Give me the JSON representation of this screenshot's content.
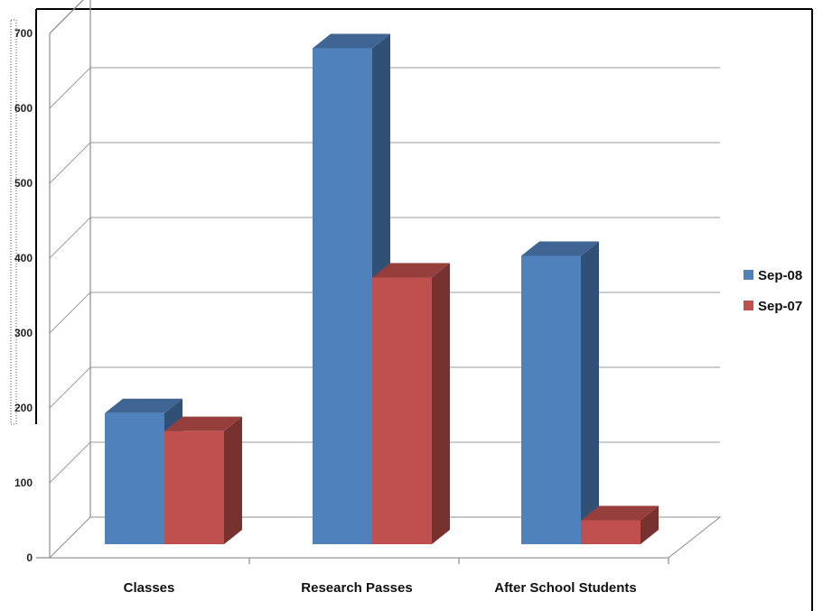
{
  "chart_data": {
    "type": "bar",
    "style": "3d-clustered-column",
    "categories": [
      "Classes",
      "Research Passes",
      "After School Students"
    ],
    "series": [
      {
        "name": "Sep-08",
        "color": "#4f81bd",
        "values": [
          175,
          662,
          385
        ]
      },
      {
        "name": "Sep-07",
        "color": "#c0504d",
        "values": [
          151,
          356,
          32
        ]
      }
    ],
    "ylim": [
      0,
      700
    ],
    "yticks": [
      "0",
      "100",
      "200",
      "300",
      "400",
      "500",
      "600",
      "700"
    ],
    "grid": true,
    "legend_position": "right"
  }
}
